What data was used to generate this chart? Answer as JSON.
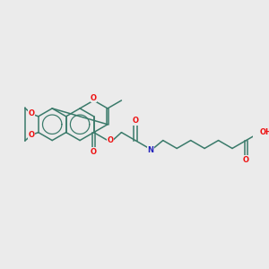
{
  "background_color": "#ebebeb",
  "bond_color": "#3a7a6a",
  "atom_colors": {
    "O": "#ee1111",
    "N": "#2222bb",
    "C": "#3a7a6a"
  },
  "bond_lw": 1.1,
  "font_size": 6.0,
  "scale": 1.0
}
